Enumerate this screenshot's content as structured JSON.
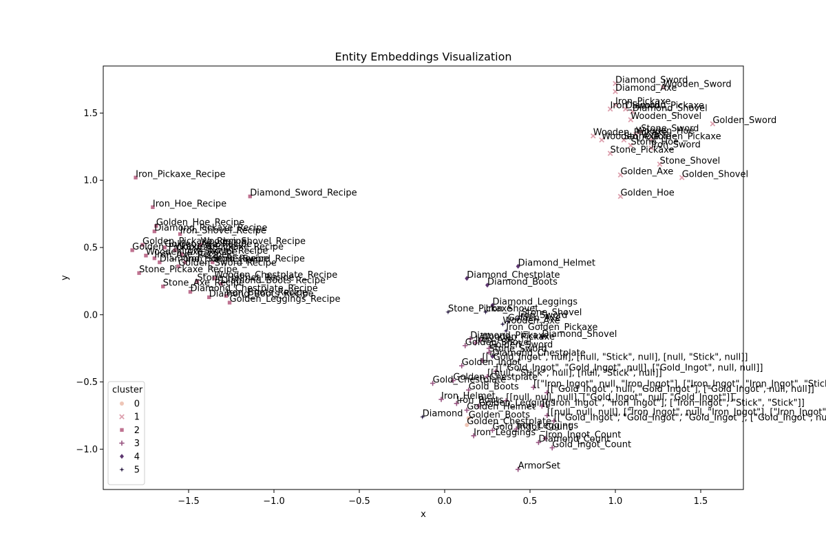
{
  "chart_data": {
    "type": "scatter",
    "title": "Entity Embeddings Visualization",
    "xlabel": "x",
    "ylabel": "y",
    "xlim": [
      -2.0,
      1.75
    ],
    "ylim": [
      -1.3,
      1.85
    ],
    "xticks": [
      -1.5,
      -1.0,
      -0.5,
      0.0,
      0.5,
      1.0,
      1.5
    ],
    "xtick_labels": [
      "−1.5",
      "−1.0",
      "−0.5",
      "0.0",
      "0.5",
      "1.0",
      "1.5"
    ],
    "yticks": [
      -1.0,
      -0.5,
      0.0,
      0.5,
      1.0,
      1.5
    ],
    "ytick_labels": [
      "−1.0",
      "−0.5",
      "0.0",
      "0.5",
      "1.0",
      "1.5"
    ],
    "grid": false,
    "legend": {
      "title": "cluster",
      "placement": "lower-left",
      "entries": [
        "0",
        "1",
        "2",
        "3",
        "4",
        "5"
      ]
    },
    "cluster_colors": [
      "#eec5b6",
      "#dda0ae",
      "#bf7391",
      "#975380",
      "#5d3670",
      "#2b1d44"
    ],
    "cluster_markers": [
      "circle",
      "x",
      "square",
      "plus",
      "diamond",
      "star"
    ],
    "points": [
      {
        "label": "Diamond_Sword",
        "x": 1.0,
        "y": 1.72,
        "cluster": "1"
      },
      {
        "label": "Diamond_Axe",
        "x": 1.0,
        "y": 1.66,
        "cluster": "1"
      },
      {
        "label": "Wooden_Sword",
        "x": 1.28,
        "y": 1.69,
        "cluster": "1"
      },
      {
        "label": "Iron_Pickaxe",
        "x": 1.0,
        "y": 1.56,
        "cluster": "1"
      },
      {
        "label": "Iron_Sword",
        "x": 0.97,
        "y": 1.53,
        "cluster": "1"
      },
      {
        "label": "Diamond_Pickaxe",
        "x": 1.06,
        "y": 1.53,
        "cluster": "1"
      },
      {
        "label": "Diamond_Shovel",
        "x": 1.1,
        "y": 1.51,
        "cluster": "1"
      },
      {
        "label": "Wooden_Shovel",
        "x": 1.09,
        "y": 1.45,
        "cluster": "1"
      },
      {
        "label": "Golden_Sword",
        "x": 1.57,
        "y": 1.42,
        "cluster": "1"
      },
      {
        "label": "Stone_Sword",
        "x": 1.15,
        "y": 1.36,
        "cluster": "1"
      },
      {
        "label": "Wooden_Pickaxe",
        "x": 0.87,
        "y": 1.33,
        "cluster": "1"
      },
      {
        "label": "Wooden_Axe",
        "x": 0.92,
        "y": 1.3,
        "cluster": "1"
      },
      {
        "label": "Wooden_Hoe",
        "x": 1.12,
        "y": 1.34,
        "cluster": "1"
      },
      {
        "label": "Golden_Pickaxe",
        "x": 1.21,
        "y": 1.3,
        "cluster": "1"
      },
      {
        "label": "Stone_Axe",
        "x": 1.05,
        "y": 1.3,
        "cluster": "1"
      },
      {
        "label": "Stone_Hoe",
        "x": 1.09,
        "y": 1.26,
        "cluster": "1"
      },
      {
        "label": "Iron_Sword",
        "x": 1.21,
        "y": 1.24,
        "cluster": "1"
      },
      {
        "label": "Stone_Pickaxe",
        "x": 0.97,
        "y": 1.2,
        "cluster": "1"
      },
      {
        "label": "Stone_Shovel",
        "x": 1.26,
        "y": 1.12,
        "cluster": "1"
      },
      {
        "label": "Golden_Axe",
        "x": 1.03,
        "y": 1.04,
        "cluster": "1"
      },
      {
        "label": "Golden_Shovel",
        "x": 1.39,
        "y": 1.02,
        "cluster": "1"
      },
      {
        "label": "Golden_Hoe",
        "x": 1.03,
        "y": 0.88,
        "cluster": "1"
      },
      {
        "label": "Iron_Pickaxe_Recipe",
        "x": -1.81,
        "y": 1.02,
        "cluster": "2"
      },
      {
        "label": "Diamond_Sword_Recipe",
        "x": -1.14,
        "y": 0.88,
        "cluster": "2"
      },
      {
        "label": "Iron_Hoe_Recipe",
        "x": -1.71,
        "y": 0.8,
        "cluster": "2"
      },
      {
        "label": "Golden_Hoe_Recipe",
        "x": -1.69,
        "y": 0.66,
        "cluster": "2"
      },
      {
        "label": "Diamond_Pickaxe_Recipe",
        "x": -1.7,
        "y": 0.62,
        "cluster": "2"
      },
      {
        "label": "Iron_Shovel_Recipe",
        "x": -1.55,
        "y": 0.6,
        "cluster": "2"
      },
      {
        "label": "Golden_Pickaxe_Recipe",
        "x": -1.77,
        "y": 0.52,
        "cluster": "2"
      },
      {
        "label": "Golden_Axe_Recipe",
        "x": -1.64,
        "y": 0.5,
        "cluster": "2"
      },
      {
        "label": "Wooden_Shovel_Recipe",
        "x": -1.43,
        "y": 0.52,
        "cluster": "2"
      },
      {
        "label": "Golden_Pickaxe_Recipe",
        "x": -1.83,
        "y": 0.48,
        "cluster": "2"
      },
      {
        "label": "Wooden_Pickaxe_Recipe",
        "x": -1.58,
        "y": 0.48,
        "cluster": "2"
      },
      {
        "label": "Iron_Shovel_Recipe",
        "x": -1.54,
        "y": 0.45,
        "cluster": "2"
      },
      {
        "label": "Wooden_Axe_Recipe",
        "x": -1.75,
        "y": 0.44,
        "cluster": "2"
      },
      {
        "label": "Iron_Axe_Recipe",
        "x": -1.7,
        "y": 0.42,
        "cluster": "2"
      },
      {
        "label": "Diamond_Hoe_Recipe",
        "x": -1.67,
        "y": 0.39,
        "cluster": "2"
      },
      {
        "label": "Iron_Sword_Recipe",
        "x": -1.52,
        "y": 0.39,
        "cluster": "2"
      },
      {
        "label": "Stone_Sword_Recipe",
        "x": -1.36,
        "y": 0.39,
        "cluster": "2"
      },
      {
        "label": "Golden_Sword_Recipe",
        "x": -1.56,
        "y": 0.36,
        "cluster": "2"
      },
      {
        "label": "Stone_Pickaxe_Recipe",
        "x": -1.79,
        "y": 0.31,
        "cluster": "2"
      },
      {
        "label": "Wooden_Chestplate_Recipe",
        "x": -1.35,
        "y": 0.27,
        "cluster": "2"
      },
      {
        "label": "Stone_Helmet_Recipe",
        "x": -1.45,
        "y": 0.25,
        "cluster": "2"
      },
      {
        "label": "Diamond_Boots_Recipe",
        "x": -1.31,
        "y": 0.23,
        "cluster": "2"
      },
      {
        "label": "Stone_Axe_Recipe",
        "x": -1.65,
        "y": 0.21,
        "cluster": "2"
      },
      {
        "label": "Diamond_Chestplate_Recipe",
        "x": -1.49,
        "y": 0.17,
        "cluster": "2"
      },
      {
        "label": "Diamond_Boots_Recipe",
        "x": -1.38,
        "y": 0.13,
        "cluster": "2"
      },
      {
        "label": "Iron_Boots_Recipe",
        "x": -1.28,
        "y": 0.14,
        "cluster": "2"
      },
      {
        "label": "Golden_Leggings_Recipe",
        "x": -1.26,
        "y": 0.09,
        "cluster": "2"
      },
      {
        "label": "Diamond_Helmet",
        "x": 0.43,
        "y": 0.36,
        "cluster": "4"
      },
      {
        "label": "Diamond_Chestplate",
        "x": 0.13,
        "y": 0.27,
        "cluster": "4"
      },
      {
        "label": "Diamond_Boots",
        "x": 0.25,
        "y": 0.22,
        "cluster": "4"
      },
      {
        "label": "Diamond_Leggings",
        "x": 0.28,
        "y": 0.07,
        "cluster": "4"
      },
      {
        "label": "Stone_Pickaxe",
        "x": 0.02,
        "y": 0.02,
        "cluster": "5"
      },
      {
        "label": "Iron_Shovel",
        "x": 0.24,
        "y": 0.02,
        "cluster": "5"
      },
      {
        "label": "Stone_Shovel",
        "x": 0.45,
        "y": -0.01,
        "cluster": "5"
      },
      {
        "label": "Iron_Sword",
        "x": 0.43,
        "y": -0.03,
        "cluster": "5"
      },
      {
        "label": "Wooden_Axe",
        "x": 0.34,
        "y": -0.07,
        "cluster": "5"
      },
      {
        "label": "Golden_Axe",
        "x": 0.37,
        "y": -0.05,
        "cluster": "5"
      },
      {
        "label": "Iron_Golden_Pickaxe",
        "x": 0.36,
        "y": -0.12,
        "cluster": "5"
      },
      {
        "label": "Diamond_Shovel",
        "x": 0.57,
        "y": -0.17,
        "cluster": "5"
      },
      {
        "label": "Diamond_Pickaxe",
        "x": 0.15,
        "y": -0.18,
        "cluster": "3"
      },
      {
        "label": "Wooden_Pickaxe",
        "x": 0.21,
        "y": -0.19,
        "cluster": "3"
      },
      {
        "label": "Iron_Axe",
        "x": 0.18,
        "y": -0.21,
        "cluster": "3"
      },
      {
        "label": "Golden_Shovel",
        "x": 0.12,
        "y": -0.23,
        "cluster": "3"
      },
      {
        "label": "Golden_Sword",
        "x": 0.26,
        "y": -0.25,
        "cluster": "3"
      },
      {
        "label": "Stone_Sword",
        "x": 0.26,
        "y": -0.28,
        "cluster": "3"
      },
      {
        "label": "Diamond_Chestplate",
        "x": 0.28,
        "y": -0.31,
        "cluster": "4"
      },
      {
        "label": "[[\"Gold_Ingot\", null], [null, \"Stick\", null], [null, \"Stick\", null]]",
        "x": 0.22,
        "y": -0.34,
        "cluster": "3"
      },
      {
        "label": "Golden_Ingot",
        "x": 0.1,
        "y": -0.38,
        "cluster": "3"
      },
      {
        "label": "[[\"Gold_Ingot\", \"Gold_Ingot\", null], [\"Gold_Ingot\", null, null]]",
        "x": 0.3,
        "y": -0.42,
        "cluster": "3"
      },
      {
        "label": "[[null, \"Stick\", null], [null, \"Stick\", null]]",
        "x": 0.25,
        "y": -0.46,
        "cluster": "3"
      },
      {
        "label": "Gold_Chestplate",
        "x": -0.07,
        "y": -0.51,
        "cluster": "3"
      },
      {
        "label": "Golden_Chestplate",
        "x": 0.05,
        "y": -0.49,
        "cluster": "3"
      },
      {
        "label": "Gold_Boots",
        "x": 0.14,
        "y": -0.56,
        "cluster": "3"
      },
      {
        "label": "[[\"Iron_Ingot\", null, \"Iron_Ingot\"], [\"Iron_Ingot\", \"Iron_Ingot\", \"Stick\"]]",
        "x": 0.52,
        "y": -0.54,
        "cluster": "3"
      },
      {
        "label": "[[\"Gold_Ingot\", null, \"Gold_Ingot\"], [\"Gold_Ingot\", null, null]]",
        "x": 0.6,
        "y": -0.58,
        "cluster": "3"
      },
      {
        "label": "Iron_Helmet",
        "x": -0.02,
        "y": -0.63,
        "cluster": "3"
      },
      {
        "label": "Iron_Boots",
        "x": 0.07,
        "y": -0.66,
        "cluster": "3"
      },
      {
        "label": "[[null, null, null], [\"Gold_Ingot\", null, \"Gold_Ingot\"]]",
        "x": 0.36,
        "y": -0.64,
        "cluster": "3"
      },
      {
        "label": "[[\"Iron_Ingot\", \"Iron_Ingot\"], [\"Iron_Ingot\", \"Stick\", \"Stick\"]]",
        "x": 0.57,
        "y": -0.68,
        "cluster": "3"
      },
      {
        "label": "Golden_Helmet",
        "x": 0.13,
        "y": -0.71,
        "cluster": "3"
      },
      {
        "label": "Golden_Leggings",
        "x": 0.2,
        "y": -0.68,
        "cluster": "3"
      },
      {
        "label": "Diamond",
        "x": -0.13,
        "y": -0.76,
        "cluster": "5"
      },
      {
        "label": "Golden_Boots",
        "x": 0.14,
        "y": -0.77,
        "cluster": "0"
      },
      {
        "label": "[[null, null, null], [\"Iron_Ingot\", null, \"Iron_Ingot\"], [\"Iron_Ingot\", null, \"Iron_Ingot\"]]",
        "x": 0.6,
        "y": -0.75,
        "cluster": "3"
      },
      {
        "label": "[[\"Gold_Ingot\", \"Gold_Ingot\", \"Gold_Ingot\"], [\"Gold_Ingot\", null, \"Gold_Ingot\"]]",
        "x": 0.64,
        "y": -0.79,
        "cluster": "3"
      },
      {
        "label": "Golden_Chestplate",
        "x": 0.13,
        "y": -0.82,
        "cluster": "0"
      },
      {
        "label": "Gold_Ingot_Count",
        "x": 0.28,
        "y": -0.86,
        "cluster": "3"
      },
      {
        "label": "Iron_Leggings",
        "x": 0.42,
        "y": -0.85,
        "cluster": "3"
      },
      {
        "label": "Iron_Leggings",
        "x": 0.17,
        "y": -0.9,
        "cluster": "3"
      },
      {
        "label": "Diamond_Count",
        "x": 0.55,
        "y": -0.95,
        "cluster": "3"
      },
      {
        "label": "Iron_Ingot_Count",
        "x": 0.59,
        "y": -0.92,
        "cluster": "3"
      },
      {
        "label": "Gold_Ingot_Count",
        "x": 0.63,
        "y": -0.99,
        "cluster": "3"
      },
      {
        "label": "ArmorSet",
        "x": 0.43,
        "y": -1.15,
        "cluster": "3"
      }
    ]
  }
}
